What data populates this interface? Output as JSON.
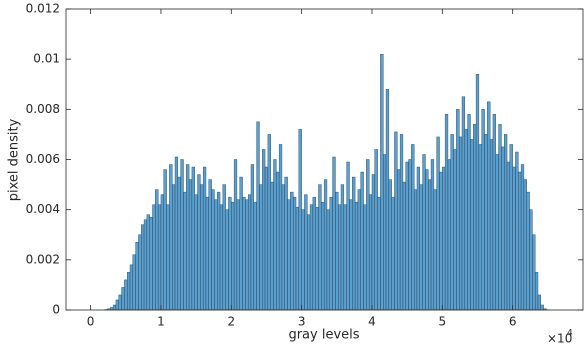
{
  "chart_data": {
    "type": "histogram",
    "xlabel": "gray levels",
    "ylabel": "pixel density",
    "x_scale_base": "×10",
    "x_scale_power": "4",
    "color": "#5b9fcf",
    "edgecolor": "#1f3a4d",
    "xlim": [
      -3500,
      70000
    ],
    "ylim": [
      0,
      0.012
    ],
    "xticks": [
      {
        "value": 0,
        "label": "0"
      },
      {
        "value": 10000,
        "label": "1"
      },
      {
        "value": 20000,
        "label": "2"
      },
      {
        "value": 30000,
        "label": "3"
      },
      {
        "value": 40000,
        "label": "4"
      },
      {
        "value": 50000,
        "label": "5"
      },
      {
        "value": 60000,
        "label": "6"
      }
    ],
    "yticks": [
      0,
      0.002,
      0.004,
      0.006,
      0.008,
      0.01,
      0.012
    ],
    "bins": [
      1600,
      2000,
      2400,
      2800,
      3200,
      3600,
      4000,
      4400,
      4800,
      5200,
      5600,
      6000,
      6400,
      6800,
      7200,
      7600,
      8000,
      8400,
      8800,
      9200,
      9600,
      10000,
      10400,
      10800,
      11200,
      11600,
      12000,
      12400,
      12800,
      13200,
      13600,
      14000,
      14400,
      14800,
      15200,
      15600,
      16000,
      16400,
      16800,
      17200,
      17600,
      18000,
      18400,
      18800,
      19200,
      19600,
      20000,
      20400,
      20800,
      21200,
      21600,
      22000,
      22400,
      22800,
      23200,
      23600,
      24000,
      24400,
      24800,
      25200,
      25600,
      26000,
      26400,
      26800,
      27200,
      27600,
      28000,
      28400,
      28800,
      29200,
      29600,
      30000,
      30400,
      30800,
      31200,
      31600,
      32000,
      32400,
      32800,
      33200,
      33600,
      34000,
      34400,
      34800,
      35200,
      35600,
      36000,
      36400,
      36800,
      37200,
      37600,
      38000,
      38400,
      38800,
      39200,
      39600,
      40000,
      40400,
      40800,
      41200,
      41600,
      42000,
      42400,
      42800,
      43200,
      43600,
      44000,
      44400,
      44800,
      45200,
      45600,
      46000,
      46400,
      46800,
      47200,
      47600,
      48000,
      48400,
      48800,
      49200,
      49600,
      50000,
      50400,
      50800,
      51200,
      51600,
      52000,
      52400,
      52800,
      53200,
      53600,
      54000,
      54400,
      54800,
      55200,
      55600,
      56000,
      56400,
      56800,
      57200,
      57600,
      58000,
      58400,
      58800,
      59200,
      59600,
      60000,
      60400,
      60800,
      61200,
      61600,
      62000,
      62400,
      62800,
      63200,
      63600,
      64000,
      64400,
      64800,
      65200,
      65600
    ],
    "counts": [
      0,
      2e-05,
      5e-05,
      0.0001,
      0.0002,
      0.0004,
      0.0006,
      0.0009,
      0.0012,
      0.0015,
      0.0018,
      0.0022,
      0.0027,
      0.003,
      0.0034,
      0.0036,
      0.0038,
      0.0037,
      0.0042,
      0.0048,
      0.0042,
      0.0046,
      0.0056,
      0.0042,
      0.0058,
      0.005,
      0.0061,
      0.0053,
      0.006,
      0.0047,
      0.0058,
      0.0052,
      0.0057,
      0.0046,
      0.0054,
      0.005,
      0.0057,
      0.0045,
      0.0052,
      0.0048,
      0.0044,
      0.0047,
      0.0042,
      0.005,
      0.004,
      0.0045,
      0.0043,
      0.006,
      0.0044,
      0.0053,
      0.0045,
      0.0044,
      0.0046,
      0.0058,
      0.0043,
      0.0075,
      0.005,
      0.0064,
      0.0057,
      0.007,
      0.0051,
      0.006,
      0.0055,
      0.0066,
      0.005,
      0.0053,
      0.0044,
      0.0047,
      0.0045,
      0.0041,
      0.0072,
      0.004,
      0.0046,
      0.0038,
      0.0042,
      0.0045,
      0.0041,
      0.005,
      0.0043,
      0.0052,
      0.004,
      0.0045,
      0.0061,
      0.0047,
      0.0042,
      0.005,
      0.0042,
      0.0059,
      0.0044,
      0.0053,
      0.0043,
      0.0048,
      0.0055,
      0.0042,
      0.006,
      0.0046,
      0.0054,
      0.0064,
      0.0045,
      0.0102,
      0.0062,
      0.0088,
      0.0052,
      0.0045,
      0.0071,
      0.0056,
      0.007,
      0.0051,
      0.0059,
      0.006,
      0.0066,
      0.0048,
      0.0057,
      0.005,
      0.0062,
      0.0056,
      0.0052,
      0.006,
      0.0048,
      0.0069,
      0.0055,
      0.0057,
      0.0078,
      0.006,
      0.007,
      0.0064,
      0.008,
      0.0069,
      0.0085,
      0.0072,
      0.0078,
      0.0068,
      0.0074,
      0.0094,
      0.0066,
      0.008,
      0.007,
      0.0083,
      0.0068,
      0.0078,
      0.0062,
      0.0074,
      0.0065,
      0.007,
      0.0059,
      0.0066,
      0.0057,
      0.0063,
      0.0055,
      0.0058,
      0.0052,
      0.0047,
      0.004,
      0.003,
      0.0015,
      0.0006,
      0.0002,
      5e-05,
      1e-05,
      0
    ]
  }
}
